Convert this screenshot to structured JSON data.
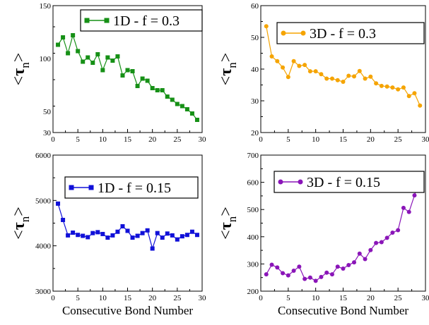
{
  "chart_data": [
    {
      "type": "line",
      "ylabel": "<τn>",
      "xlabel": "",
      "xlim": [
        0,
        30
      ],
      "ylim": [
        30,
        150
      ],
      "xticks": [
        0,
        5,
        10,
        15,
        20,
        25,
        30
      ],
      "yticks": [
        50,
        100,
        150
      ],
      "legend": "top-right",
      "series": [
        {
          "name": "1D - f = 0.3",
          "color": "#169016",
          "marker": "square",
          "x": [
            1,
            2,
            3,
            4,
            5,
            6,
            7,
            8,
            9,
            10,
            11,
            12,
            13,
            14,
            15,
            16,
            17,
            18,
            19,
            20,
            21,
            22,
            23,
            24,
            25,
            26,
            27,
            28,
            29
          ],
          "values": [
            113,
            120,
            105,
            122,
            107,
            97,
            101,
            96,
            104,
            89,
            101,
            98,
            102,
            84,
            89,
            88,
            74,
            81,
            79,
            72,
            70,
            70,
            64,
            61,
            57,
            55,
            52,
            48,
            42
          ]
        }
      ]
    },
    {
      "type": "line",
      "ylabel": "<τn>",
      "xlabel": "",
      "xlim": [
        0,
        30
      ],
      "ylim": [
        20,
        60
      ],
      "xticks": [
        0,
        5,
        10,
        15,
        20,
        25,
        30
      ],
      "yticks": [
        20,
        30,
        40,
        50,
        60
      ],
      "legend": "top-right",
      "series": [
        {
          "name": "3D  - f = 0.3",
          "color": "#f5a400",
          "marker": "circle",
          "x": [
            1,
            2,
            3,
            4,
            5,
            6,
            7,
            8,
            9,
            10,
            11,
            12,
            13,
            14,
            15,
            16,
            17,
            18,
            19,
            20,
            21,
            22,
            23,
            24,
            25,
            26,
            27,
            28,
            29
          ],
          "values": [
            53.5,
            44,
            42.5,
            40.5,
            37.5,
            42.5,
            41,
            41.3,
            39.3,
            39.3,
            38.4,
            37,
            37,
            36.5,
            36,
            37.9,
            37.7,
            39.4,
            37,
            37.6,
            35.5,
            34.7,
            34.5,
            34.2,
            33.6,
            34.2,
            31.5,
            32.4,
            28.5
          ]
        }
      ]
    },
    {
      "type": "line",
      "ylabel": "<τn>",
      "xlabel": "Consecutive Bond Number",
      "xlim": [
        0,
        30
      ],
      "ylim": [
        3000,
        6000
      ],
      "xticks": [
        0,
        5,
        10,
        15,
        20,
        25,
        30
      ],
      "yticks": [
        3000,
        4000,
        5000,
        6000
      ],
      "legend": "top-right",
      "series": [
        {
          "name": "1D - f = 0.15",
          "color": "#1010d8",
          "marker": "square",
          "x": [
            1,
            2,
            3,
            4,
            5,
            6,
            7,
            8,
            9,
            10,
            11,
            12,
            13,
            14,
            15,
            16,
            17,
            18,
            19,
            20,
            21,
            22,
            23,
            24,
            25,
            26,
            27,
            28,
            29
          ],
          "values": [
            4930,
            4570,
            4230,
            4290,
            4240,
            4220,
            4190,
            4280,
            4300,
            4260,
            4180,
            4230,
            4310,
            4430,
            4330,
            4180,
            4220,
            4280,
            4340,
            3940,
            4280,
            4180,
            4270,
            4230,
            4140,
            4210,
            4240,
            4310,
            4240
          ]
        }
      ]
    },
    {
      "type": "line",
      "ylabel": "<τn>",
      "xlabel": "Consecutive Bond Number",
      "xlim": [
        0,
        30
      ],
      "ylim": [
        200,
        700
      ],
      "xticks": [
        0,
        5,
        10,
        15,
        20,
        25,
        30
      ],
      "yticks": [
        200,
        300,
        400,
        500,
        600,
        700
      ],
      "legend": "top-right",
      "series": [
        {
          "name": "3D  - f = 0.15",
          "color": "#8a15b8",
          "marker": "circle",
          "x": [
            1,
            2,
            3,
            4,
            5,
            6,
            7,
            8,
            9,
            10,
            11,
            12,
            13,
            14,
            15,
            16,
            17,
            18,
            19,
            20,
            21,
            22,
            23,
            24,
            25,
            26,
            27,
            28,
            29
          ],
          "values": [
            262,
            297,
            287,
            266,
            258,
            275,
            290,
            245,
            250,
            238,
            252,
            268,
            262,
            290,
            283,
            296,
            306,
            338,
            318,
            351,
            377,
            380,
            396,
            415,
            424,
            506,
            491,
            552,
            620
          ]
        }
      ]
    }
  ]
}
